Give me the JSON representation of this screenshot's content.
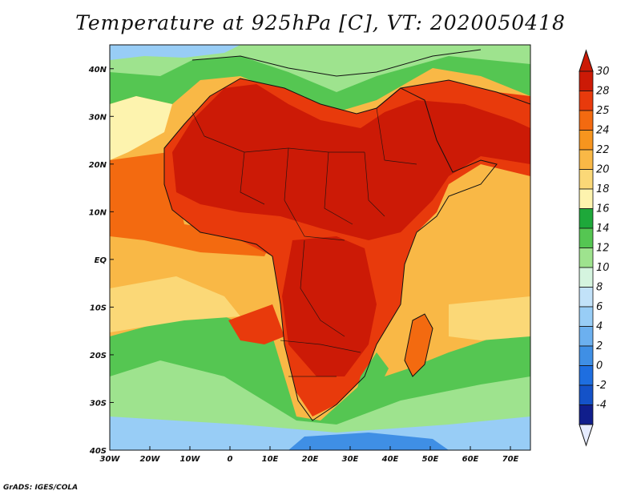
{
  "title": "Temperature at 925hPa [C], VT: 2020050418",
  "credit": "GrADS: IGES/COLA",
  "map": {
    "region": "Africa and surrounding oceans",
    "projection": "lat-lon",
    "lon_range": [
      -30,
      75
    ],
    "lat_range": [
      -40,
      45
    ],
    "lon_ticks": [
      "30W",
      "20W",
      "10W",
      "0",
      "10E",
      "20E",
      "30E",
      "40E",
      "50E",
      "60E",
      "70E"
    ],
    "lat_ticks": [
      "40N",
      "30N",
      "20N",
      "10N",
      "EQ",
      "10S",
      "20S",
      "30S",
      "40S"
    ]
  },
  "colorbar": {
    "labels": [
      "30",
      "28",
      "25",
      "24",
      "22",
      "20",
      "18",
      "16",
      "14",
      "12",
      "10",
      "8",
      "6",
      "4",
      "2",
      "0",
      "-2",
      "-4"
    ],
    "colors": [
      "#cc1a06",
      "#e83a0c",
      "#f36a10",
      "#f7951e",
      "#f9b846",
      "#fbd877",
      "#fdf3ae",
      "#1ea83a",
      "#55c652",
      "#9ee38e",
      "#d5f4df",
      "#c2e2f9",
      "#98cdf6",
      "#6cb0ef",
      "#3f8fe5",
      "#1e6ee0",
      "#1452c8",
      "#101e8c"
    ],
    "top_arrow_color": "#cc1a06",
    "bottom_arrow_color": "#e6ecff"
  }
}
